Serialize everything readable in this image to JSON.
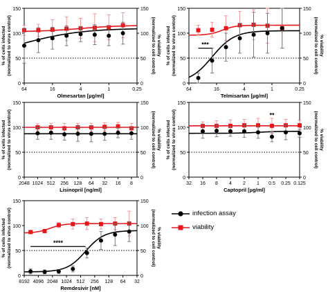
{
  "legend": {
    "infection_label": "infection assay",
    "viability_label": "viability"
  },
  "colors": {
    "infection": "#000000",
    "viability": "#e8151b",
    "error_infection": "#6e6e6e",
    "error_viability": "#f08a8a"
  },
  "chart_data": [
    {
      "id": "olmesartan",
      "type": "line",
      "xlabel": "Olmesartan [µg/ml]",
      "ylabel_left": [
        "% of cells infected",
        "(normalized to virus control)"
      ],
      "ylabel_right": [
        "% viability",
        "(normalized to cell control)"
      ],
      "x_scale": "log2-reversed",
      "xlim": [
        64,
        0.25
      ],
      "x_ticks": [
        "64",
        "16",
        "4",
        "1",
        "0.25"
      ],
      "x_tick_values": [
        64,
        16,
        4,
        1,
        0.25
      ],
      "ylim": [
        0,
        150
      ],
      "y_ticks": [
        0,
        50,
        100,
        150
      ],
      "reference_line": 50,
      "infection": {
        "x": [
          64,
          32,
          16,
          8,
          4,
          2,
          1,
          0.5
        ],
        "y": [
          75,
          86,
          90,
          95,
          98,
          97,
          95,
          100
        ],
        "err": [
          35,
          25,
          22,
          20,
          15,
          20,
          20,
          22
        ]
      },
      "viability": {
        "x": [
          64,
          32,
          16,
          8,
          4,
          2,
          1,
          0.5
        ],
        "y": [
          106,
          106,
          107,
          109,
          110,
          111,
          112,
          116
        ],
        "err": [
          10,
          12,
          20,
          24,
          20,
          28,
          25,
          25
        ]
      },
      "infection_fit": {
        "bottom": 50,
        "top": 110,
        "ec50": 64,
        "slope": 0.7
      },
      "viability_fit": {
        "bottom": 103,
        "top": 116,
        "ec50": 4,
        "slope": 1
      },
      "significance": []
    },
    {
      "id": "telmisartan",
      "type": "line",
      "xlabel": "Telmisartan [µg/ml]",
      "ylabel_left": [
        "% of cells infected",
        "(normalized to virus control)"
      ],
      "ylabel_right": [
        "% viability",
        "(normalized to cell control)"
      ],
      "x_scale": "log2-reversed",
      "xlim": [
        64,
        0.25
      ],
      "x_ticks": [
        "64",
        "16",
        "4",
        "1",
        "0.25"
      ],
      "x_tick_values": [
        64,
        16,
        4,
        1,
        0.25
      ],
      "ylim": [
        0,
        150
      ],
      "y_ticks": [
        0,
        50,
        100,
        150
      ],
      "reference_line": 50,
      "infection": {
        "x": [
          40,
          20,
          10,
          5,
          2.5,
          1.25,
          0.6
        ],
        "y": [
          10,
          45,
          72,
          90,
          97,
          100,
          110
        ],
        "err": [
          10,
          25,
          28,
          30,
          45,
          40,
          40
        ]
      },
      "viability": {
        "x": [
          40,
          20,
          10,
          5,
          2.5,
          1.25,
          0.6
        ],
        "y": [
          106,
          107,
          110,
          116,
          117,
          115,
          110
        ],
        "err": [
          10,
          15,
          25,
          28,
          30,
          35,
          40
        ]
      },
      "infection_fit": {
        "bottom": 0,
        "top": 105,
        "ec50": 20,
        "slope": 1.8
      },
      "viability_fit": {
        "bottom": 96,
        "top": 116,
        "ec50": 12,
        "slope": 3
      },
      "significance": [
        {
          "label": "***",
          "x_from": 40,
          "x_to": 20,
          "y": 70
        }
      ]
    },
    {
      "id": "lisinopril",
      "type": "line",
      "xlabel": "Lisinopril [ng/ml]",
      "ylabel_left": [
        "% of cells infected",
        "(normalized to virus control)"
      ],
      "ylabel_right": [
        "% viability",
        "(normalized to cell control)"
      ],
      "x_scale": "log2-reversed",
      "xlim": [
        2048,
        6
      ],
      "x_ticks": [
        "2048",
        "1024",
        "512",
        "256",
        "128",
        "64",
        "32",
        "16",
        "8"
      ],
      "x_tick_values": [
        2048,
        1024,
        512,
        256,
        128,
        64,
        32,
        16,
        8
      ],
      "ylim": [
        0,
        150
      ],
      "y_ticks": [
        0,
        50,
        100,
        150
      ],
      "reference_line": 50,
      "infection": {
        "x": [
          1024,
          512,
          256,
          128,
          64,
          32,
          16,
          8
        ],
        "y": [
          88,
          89,
          86,
          87,
          87,
          87,
          89,
          88
        ],
        "err": [
          12,
          13,
          12,
          15,
          16,
          13,
          10,
          12
        ]
      },
      "viability": {
        "x": [
          1024,
          512,
          256,
          128,
          64,
          32,
          16,
          8
        ],
        "y": [
          100,
          100,
          98,
          100,
          100,
          101,
          102,
          98
        ],
        "err": [
          7,
          8,
          10,
          8,
          8,
          8,
          8,
          10
        ]
      },
      "infection_fit": {
        "bottom": 87,
        "top": 87,
        "ec50": 64,
        "slope": 1
      },
      "viability_fit": {
        "bottom": 100,
        "top": 100,
        "ec50": 64,
        "slope": 1
      },
      "significance": []
    },
    {
      "id": "captopril",
      "type": "line",
      "xlabel": "Captopril [µg/ml]",
      "ylabel_left": [
        "% of cells infected",
        "(normalized to virus control)"
      ],
      "ylabel_right": [
        "% viability",
        "(normalized to cell control)"
      ],
      "x_scale": "log2-reversed",
      "xlim": [
        32,
        0.125
      ],
      "x_ticks": [
        "32",
        "16",
        "8",
        "4",
        "2",
        "1",
        "0.5",
        "0.25",
        "0.125"
      ],
      "x_tick_values": [
        32,
        16,
        8,
        4,
        2,
        1,
        0.5,
        0.25,
        0.125
      ],
      "ylim": [
        0,
        150
      ],
      "y_ticks": [
        0,
        50,
        100,
        150
      ],
      "reference_line": 50,
      "infection": {
        "x": [
          16,
          8,
          4,
          2,
          1,
          0.5,
          0.25,
          0.125
        ],
        "y": [
          92,
          93,
          92,
          92,
          90,
          81,
          90,
          88
        ],
        "err": [
          14,
          12,
          10,
          12,
          12,
          10,
          15,
          8
        ]
      },
      "viability": {
        "x": [
          16,
          8,
          4,
          2,
          1,
          0.5,
          0.25,
          0.125
        ],
        "y": [
          103,
          103,
          103,
          104,
          104,
          103,
          104,
          104
        ],
        "err": [
          8,
          10,
          12,
          12,
          14,
          15,
          12,
          10
        ]
      },
      "infection_fit": {
        "bottom": 88,
        "top": 92,
        "ec50": 1,
        "slope": 2
      },
      "viability_fit": {
        "bottom": 103,
        "top": 103,
        "ec50": 4,
        "slope": 1
      },
      "significance": [
        {
          "label": "**",
          "x": 0.5,
          "y": 124
        }
      ]
    },
    {
      "id": "remdesivir",
      "type": "line",
      "xlabel": "Remdesivir [nM]",
      "ylabel_left": [
        "% of cells infected",
        "(normalized to virus control)"
      ],
      "ylabel_right": [
        "% viability",
        "(normalized to cell control)"
      ],
      "x_scale": "log2-reversed",
      "xlim": [
        8192,
        32
      ],
      "x_ticks": [
        "8192",
        "4096",
        "2048",
        "1024",
        "512",
        "256",
        "128",
        "64",
        "32"
      ],
      "x_tick_values": [
        8192,
        4096,
        2048,
        1024,
        512,
        256,
        128,
        64,
        32
      ],
      "ylim": [
        0,
        150
      ],
      "y_ticks": [
        0,
        50,
        100,
        150
      ],
      "reference_line": 50,
      "infection": {
        "x": [
          6000,
          3000,
          1500,
          750,
          375,
          188,
          94,
          47
        ],
        "y": [
          8,
          7,
          8,
          13,
          45,
          70,
          82,
          88
        ],
        "err": [
          5,
          4,
          4,
          6,
          10,
          18,
          22,
          20
        ]
      },
      "viability": {
        "x": [
          6000,
          3000,
          1500,
          750,
          375,
          188,
          94,
          47
        ],
        "y": [
          87,
          89,
          101,
          103,
          104,
          103,
          104,
          104
        ],
        "err": [
          3,
          3,
          5,
          10,
          12,
          10,
          12,
          25
        ]
      },
      "infection_fit": {
        "bottom": 7,
        "top": 90,
        "ec50": 400,
        "slope": 2.2
      },
      "viability_fit": {
        "bottom": 85,
        "top": 104,
        "ec50": 2300,
        "slope": 3
      },
      "significance": [
        {
          "label": "****",
          "x_from": 6000,
          "x_to": 400,
          "y": 58
        }
      ]
    }
  ]
}
